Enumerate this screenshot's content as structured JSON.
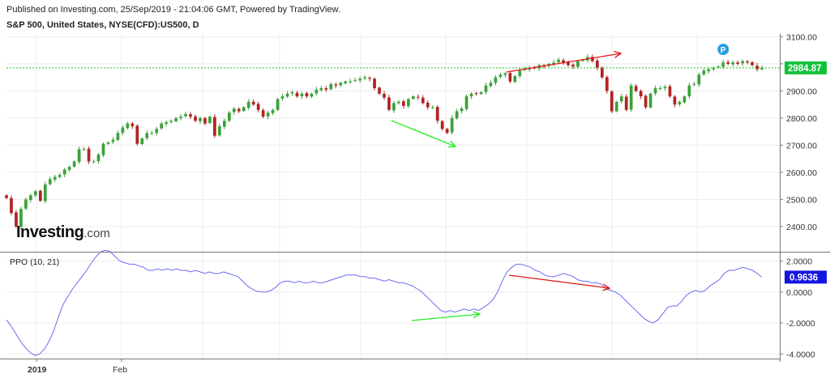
{
  "header": {
    "published": "Published on Investing.com, 25/Sep/2019 - 21:04:06 GMT, Powered by TradingView.",
    "symbol": "S&P 500, United States, NYSE(CFD):US500, D"
  },
  "logo": {
    "brand": "Investing",
    "suffix": ".com",
    "lettering": "Investing.com"
  },
  "marker": {
    "label": "P",
    "color": "#2a9fe0"
  },
  "colors": {
    "up": "#3aa23a",
    "down": "#b22222",
    "ppo_line": "#6b6bf0",
    "last_price_bg": "#12c23a",
    "last_ppo_bg": "#1515e0",
    "price_line": "#22c022",
    "arrow_red": "#e01515",
    "arrow_green": "#22ee22"
  },
  "chart_data": [
    {
      "type": "candlestick",
      "title": "S&P 500, United States, NYSE(CFD):US500, D",
      "ylim": [
        2310,
        3110
      ],
      "yticks": [
        "3100.00",
        "3000.00",
        "2900.00",
        "2800.00",
        "2700.00",
        "2600.00",
        "2500.00",
        "2400.00"
      ],
      "last_price": 2984.87,
      "last_price_label": "2984.87",
      "x_labels": [
        "2019",
        "Feb"
      ],
      "closes": [
        2505,
        2450,
        2400,
        2465,
        2500,
        2515,
        2530,
        2495,
        2555,
        2575,
        2583,
        2590,
        2610,
        2620,
        2640,
        2685,
        2685,
        2640,
        2640,
        2665,
        2705,
        2710,
        2720,
        2745,
        2765,
        2780,
        2770,
        2705,
        2725,
        2745,
        2745,
        2760,
        2780,
        2785,
        2790,
        2800,
        2805,
        2815,
        2805,
        2790,
        2800,
        2780,
        2805,
        2735,
        2770,
        2790,
        2820,
        2835,
        2825,
        2840,
        2860,
        2850,
        2830,
        2805,
        2820,
        2830,
        2870,
        2880,
        2890,
        2895,
        2880,
        2890,
        2880,
        2890,
        2905,
        2910,
        2905,
        2925,
        2920,
        2930,
        2935,
        2935,
        2940,
        2945,
        2950,
        2945,
        2910,
        2890,
        2875,
        2830,
        2855,
        2860,
        2845,
        2870,
        2880,
        2875,
        2855,
        2840,
        2840,
        2790,
        2760,
        2745,
        2800,
        2825,
        2835,
        2880,
        2890,
        2890,
        2895,
        2920,
        2930,
        2950,
        2960,
        2965,
        2935,
        2955,
        2975,
        2980,
        2985,
        2985,
        2995,
        2990,
        3000,
        3005,
        3015,
        3005,
        2995,
        2990,
        3010,
        3015,
        3025,
        3010,
        2985,
        2950,
        2900,
        2825,
        2860,
        2880,
        2830,
        2920,
        2900,
        2880,
        2840,
        2890,
        2910,
        2910,
        2915,
        2880,
        2850,
        2860,
        2880,
        2920,
        2925,
        2960,
        2975,
        2980,
        2985,
        2990,
        3005,
        3000,
        3005,
        3000,
        3010,
        3005,
        2995,
        2980,
        2984.87
      ],
      "markers": [
        {
          "label": "P",
          "index": 147
        }
      ]
    },
    {
      "type": "line",
      "title": "PPO (10, 21)",
      "ylim": [
        -4.3,
        2.5
      ],
      "yticks": [
        "2.0000",
        "0.0000",
        "-2.0000",
        "-4.0000"
      ],
      "last_value": 0.9636,
      "last_value_label": "0.9636",
      "values": [
        -1.8,
        -2.2,
        -2.7,
        -3.2,
        -3.6,
        -3.9,
        -4.1,
        -4.0,
        -3.7,
        -3.2,
        -2.5,
        -1.6,
        -0.8,
        -0.3,
        0.2,
        0.6,
        1.0,
        1.4,
        1.9,
        2.3,
        2.6,
        2.7,
        2.6,
        2.3,
        2.0,
        1.9,
        1.8,
        1.8,
        1.7,
        1.6,
        1.4,
        1.4,
        1.5,
        1.4,
        1.5,
        1.4,
        1.5,
        1.4,
        1.4,
        1.3,
        1.4,
        1.3,
        1.2,
        1.3,
        1.2,
        1.2,
        1.3,
        1.2,
        1.1,
        1.0,
        0.7,
        0.4,
        0.2,
        0.05,
        0.0,
        0.0,
        0.1,
        0.3,
        0.6,
        0.7,
        0.7,
        0.6,
        0.7,
        0.6,
        0.6,
        0.7,
        0.6,
        0.6,
        0.7,
        0.8,
        0.9,
        1.0,
        1.1,
        1.1,
        1.1,
        1.0,
        1.0,
        0.9,
        0.9,
        0.8,
        0.7,
        0.8,
        0.7,
        0.6,
        0.6,
        0.5,
        0.4,
        0.2,
        0.0,
        -0.3,
        -0.6,
        -0.9,
        -1.2,
        -1.3,
        -1.2,
        -1.3,
        -1.2,
        -1.1,
        -1.2,
        -1.1,
        -1.2,
        -1.0,
        -0.8,
        -0.5,
        0.0,
        0.7,
        1.3,
        1.6,
        1.8,
        1.8,
        1.7,
        1.6,
        1.4,
        1.3,
        1.1,
        1.0,
        1.0,
        1.1,
        1.2,
        1.1,
        1.0,
        0.8,
        0.7,
        0.7,
        0.6,
        0.6,
        0.5,
        0.2,
        0.1,
        0.0,
        -0.2,
        -0.5,
        -0.8,
        -1.1,
        -1.4,
        -1.7,
        -1.9,
        -2.0,
        -1.8,
        -1.4,
        -1.0,
        -0.9,
        -0.9,
        -0.6,
        -0.2,
        0.0,
        0.1,
        0.0,
        0.1,
        0.4,
        0.6,
        0.8,
        1.2,
        1.4,
        1.4,
        1.5,
        1.6,
        1.5,
        1.4,
        1.2,
        0.9636
      ]
    }
  ]
}
